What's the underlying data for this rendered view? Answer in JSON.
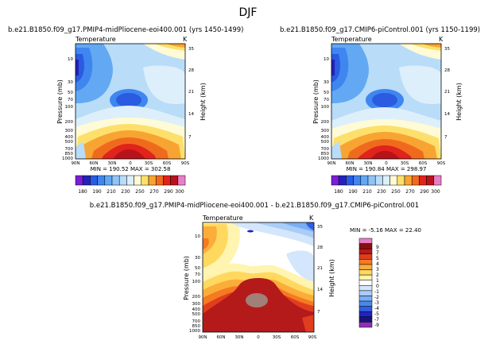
{
  "page": {
    "title": "DJF"
  },
  "chart_data": [
    {
      "type": "contour",
      "title": "b.e21.B1850.f09_g17.PMIP4-midPliocene-eoi400.001 (yrs 1450-1499)",
      "subtitle": "Temperature",
      "units": "K",
      "ylabel": "Pressure (mb)",
      "y2label": "Height (km)",
      "x_ticks": [
        "90N",
        "60N",
        "30N",
        "0",
        "30S",
        "60S",
        "90S"
      ],
      "y_ticks": [
        "10",
        "30",
        "50",
        "70",
        "100",
        "200",
        "300",
        "400",
        "500",
        "700",
        "850",
        "1000"
      ],
      "y2_ticks": [
        "35",
        "28",
        "21",
        "14",
        "7"
      ],
      "stats": "MIN = 190.52   MAX = 302.58",
      "min": 190.52,
      "max": 302.58,
      "levels": [
        180,
        190,
        200,
        210,
        220,
        230,
        240,
        250,
        260,
        270,
        280,
        290,
        300
      ],
      "colorbar_labels": [
        "180",
        "190",
        "210",
        "230",
        "250",
        "270",
        "290",
        "300"
      ]
    },
    {
      "type": "contour",
      "title": "b.e21.B1850.f09_g17.CMIP6-piControl.001 (yrs 1150-1199)",
      "subtitle": "Temperature",
      "units": "K",
      "ylabel": "Pressure (mb)",
      "y2label": "Height (km)",
      "x_ticks": [
        "90N",
        "60N",
        "30N",
        "0",
        "30S",
        "60S",
        "90S"
      ],
      "y_ticks": [
        "10",
        "30",
        "50",
        "70",
        "100",
        "200",
        "300",
        "400",
        "500",
        "700",
        "850",
        "1000"
      ],
      "y2_ticks": [
        "35",
        "28",
        "21",
        "14",
        "7"
      ],
      "stats": "MIN = 190.84   MAX = 298.97",
      "min": 190.84,
      "max": 298.97,
      "levels": [
        180,
        190,
        200,
        210,
        220,
        230,
        240,
        250,
        260,
        270,
        280,
        290,
        300
      ],
      "colorbar_labels": [
        "180",
        "190",
        "210",
        "230",
        "250",
        "270",
        "290",
        "300"
      ]
    },
    {
      "type": "contour",
      "title": "b.e21.B1850.f09_g17.PMIP4-midPliocene-eoi400.001 - b.e21.B1850.f09_g17.CMIP6-piControl.001",
      "subtitle": "Temperature",
      "units": "K",
      "ylabel": "Pressure (mb)",
      "y2label": "Height (km)",
      "x_ticks": [
        "90N",
        "60N",
        "30N",
        "0",
        "30S",
        "60S",
        "90S"
      ],
      "y_ticks": [
        "10",
        "30",
        "50",
        "70",
        "100",
        "200",
        "300",
        "400",
        "500",
        "700",
        "850",
        "1000"
      ],
      "y2_ticks": [
        "35",
        "28",
        "21",
        "14",
        "7"
      ],
      "stats": "MIN = -5.16   MAX = 22.40",
      "min": -5.16,
      "max": 22.4,
      "levels": [
        -9,
        -7,
        -5,
        -4,
        -3,
        -2,
        -1,
        0,
        1,
        2,
        3,
        4,
        5,
        7,
        9
      ],
      "colorbar_labels": [
        "9",
        "7",
        "5",
        "4",
        "3",
        "2",
        "1",
        "0",
        "-1",
        "-2",
        "-3",
        "-4",
        "-5",
        "-7",
        "-9"
      ]
    }
  ],
  "colors": {
    "abs_scale": [
      "#7a1fd6",
      "#2323b8",
      "#2a5be0",
      "#3f86f0",
      "#63a8f2",
      "#8ec4f7",
      "#b9dcf8",
      "#ddeffa",
      "#fffbd6",
      "#fde06b",
      "#f8a433",
      "#f06a1e",
      "#e0231c",
      "#b8131a",
      "#e87fc6"
    ],
    "diff_scale": [
      "#8f2fb6",
      "#15157a",
      "#2323c4",
      "#2f5fe2",
      "#4a88ef",
      "#79aef4",
      "#a9cdf8",
      "#d3e6fb",
      "#ffffff",
      "#fff4b0",
      "#ffd860",
      "#fbad3a",
      "#f57a21",
      "#e03d1f",
      "#b41a1a",
      "#8a1010",
      "#e87fc6"
    ]
  }
}
